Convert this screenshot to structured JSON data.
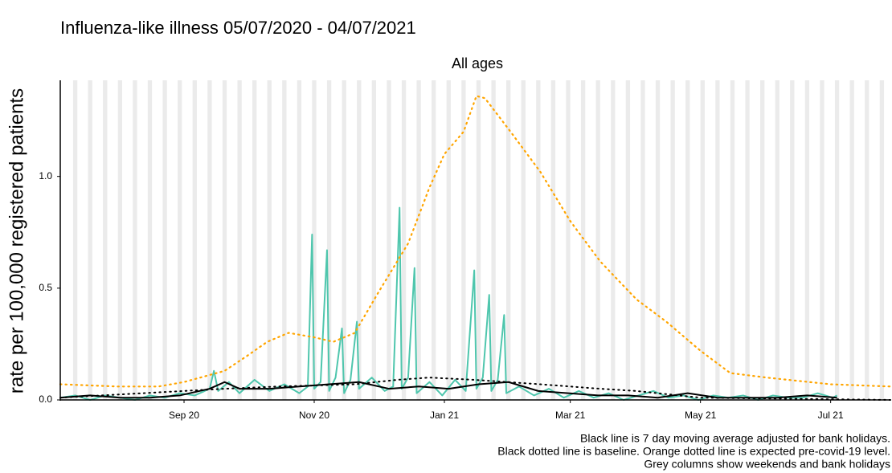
{
  "chart_data": {
    "type": "line",
    "title": "Influenza-like illness 05/07/2020 - 04/07/2021",
    "subtitle": "All ages",
    "y_label": "rate per 100,000 registered patients",
    "notes": [
      "Black line is 7 day moving average adjusted for bank holidays.",
      "Black dotted line is baseline. Orange dotted line is expected pre-covid-19 level.",
      "Grey columns show weekends and bank holidays"
    ],
    "xlim": [
      "2020-07-05",
      "2021-07-29"
    ],
    "xticks": [
      {
        "value": "2020-09-01",
        "label": "Sep 20"
      },
      {
        "value": "2020-11-01",
        "label": "Nov 20"
      },
      {
        "value": "2021-01-01",
        "label": "Jan 21"
      },
      {
        "value": "2021-03-01",
        "label": "Mar 21"
      },
      {
        "value": "2021-05-01",
        "label": "May 21"
      },
      {
        "value": "2021-07-01",
        "label": "Jul 21"
      }
    ],
    "ylim": [
      0,
      1.43
    ],
    "yticks": [
      {
        "value": 0,
        "label": "0.0"
      },
      {
        "value": 0.5,
        "label": "0.5"
      },
      {
        "value": 1,
        "label": "1.0"
      }
    ],
    "weekend_color": "#ebebeb",
    "series": [
      {
        "color": "#4fc6ad",
        "style": "solid",
        "width": 2,
        "x": [
          "2020-07-05",
          "2020-07-12",
          "2020-07-19",
          "2020-07-26",
          "2020-08-02",
          "2020-08-09",
          "2020-08-16",
          "2020-08-23",
          "2020-08-30",
          "2020-09-06",
          "2020-09-13",
          "2020-09-15",
          "2020-09-17",
          "2020-09-22",
          "2020-09-27",
          "2020-10-04",
          "2020-10-11",
          "2020-10-18",
          "2020-10-25",
          "2020-10-29",
          "2020-10-31",
          "2020-11-01",
          "2020-11-04",
          "2020-11-07",
          "2020-11-08",
          "2020-11-11",
          "2020-11-14",
          "2020-11-15",
          "2020-11-18",
          "2020-11-21",
          "2020-11-22",
          "2020-11-28",
          "2020-12-04",
          "2020-12-08",
          "2020-12-11",
          "2020-12-12",
          "2020-12-15",
          "2020-12-18",
          "2020-12-19",
          "2020-12-25",
          "2020-12-31",
          "2021-01-06",
          "2021-01-11",
          "2021-01-15",
          "2021-01-16",
          "2021-01-19",
          "2021-01-22",
          "2021-01-23",
          "2021-01-26",
          "2021-01-29",
          "2021-01-30",
          "2021-02-05",
          "2021-02-12",
          "2021-02-19",
          "2021-02-26",
          "2021-03-05",
          "2021-03-12",
          "2021-03-19",
          "2021-03-26",
          "2021-04-02",
          "2021-04-09",
          "2021-04-16",
          "2021-04-23",
          "2021-04-30",
          "2021-05-07",
          "2021-05-14",
          "2021-05-21",
          "2021-05-28",
          "2021-06-04",
          "2021-06-11",
          "2021-06-18",
          "2021-06-25",
          "2021-07-02",
          "2021-07-04"
        ],
        "values": [
          0.01,
          0.02,
          0.0,
          0.02,
          0.01,
          0.0,
          0.02,
          0.01,
          0.03,
          0.02,
          0.05,
          0.13,
          0.04,
          0.08,
          0.03,
          0.09,
          0.04,
          0.07,
          0.03,
          0.06,
          0.74,
          0.05,
          0.08,
          0.67,
          0.04,
          0.1,
          0.32,
          0.03,
          0.09,
          0.35,
          0.05,
          0.1,
          0.04,
          0.06,
          0.86,
          0.05,
          0.1,
          0.59,
          0.03,
          0.08,
          0.02,
          0.09,
          0.04,
          0.58,
          0.05,
          0.1,
          0.47,
          0.04,
          0.09,
          0.38,
          0.03,
          0.06,
          0.02,
          0.05,
          0.01,
          0.04,
          0.01,
          0.03,
          0.0,
          0.02,
          0.04,
          0.01,
          0.02,
          0.0,
          0.02,
          0.01,
          0.02,
          0.0,
          0.02,
          0.01,
          0.01,
          0.03,
          0.01,
          0.02
        ]
      },
      {
        "color": "#ffa500",
        "style": "dotted",
        "width": 2.2,
        "x": [
          "2020-07-05",
          "2020-08-01",
          "2020-08-20",
          "2020-09-01",
          "2020-09-20",
          "2020-10-01",
          "2020-10-10",
          "2020-10-20",
          "2020-11-01",
          "2020-11-10",
          "2020-11-20",
          "2020-12-01",
          "2020-12-15",
          "2020-12-25",
          "2021-01-01",
          "2021-01-10",
          "2021-01-16",
          "2021-01-20",
          "2021-02-01",
          "2021-02-15",
          "2021-03-01",
          "2021-03-15",
          "2021-04-01",
          "2021-04-15",
          "2021-05-01",
          "2021-05-15",
          "2021-06-01",
          "2021-07-01",
          "2021-07-29"
        ],
        "values": [
          0.07,
          0.06,
          0.06,
          0.08,
          0.13,
          0.2,
          0.26,
          0.3,
          0.28,
          0.26,
          0.3,
          0.48,
          0.7,
          0.95,
          1.1,
          1.2,
          1.36,
          1.35,
          1.2,
          1.02,
          0.8,
          0.62,
          0.45,
          0.35,
          0.22,
          0.12,
          0.1,
          0.07,
          0.06
        ]
      },
      {
        "color": "#000000",
        "style": "dotted",
        "width": 2,
        "x": [
          "2020-07-05",
          "2020-09-20",
          "2020-10-15",
          "2020-11-20",
          "2020-12-10",
          "2020-12-25",
          "2021-01-15",
          "2021-02-15",
          "2021-03-15",
          "2021-04-01",
          "2021-05-01",
          "2021-07-29"
        ],
        "values": [
          0.01,
          0.05,
          0.06,
          0.07,
          0.09,
          0.1,
          0.09,
          0.07,
          0.05,
          0.04,
          0.01,
          0.0
        ]
      },
      {
        "color": "#000000",
        "style": "solid",
        "width": 2,
        "x": [
          "2020-07-05",
          "2020-07-19",
          "2020-08-02",
          "2020-08-16",
          "2020-08-30",
          "2020-09-13",
          "2020-09-20",
          "2020-09-27",
          "2020-10-11",
          "2020-10-25",
          "2020-11-08",
          "2020-11-22",
          "2020-12-06",
          "2020-12-20",
          "2021-01-03",
          "2021-01-17",
          "2021-01-31",
          "2021-02-14",
          "2021-02-28",
          "2021-03-14",
          "2021-03-28",
          "2021-04-11",
          "2021-04-25",
          "2021-05-09",
          "2021-05-23",
          "2021-06-06",
          "2021-06-20",
          "2021-07-04"
        ],
        "values": [
          0.01,
          0.02,
          0.01,
          0.01,
          0.02,
          0.05,
          0.08,
          0.05,
          0.05,
          0.06,
          0.07,
          0.08,
          0.05,
          0.06,
          0.05,
          0.07,
          0.08,
          0.04,
          0.03,
          0.02,
          0.02,
          0.01,
          0.03,
          0.01,
          0.01,
          0.01,
          0.02,
          0.01
        ]
      }
    ]
  }
}
